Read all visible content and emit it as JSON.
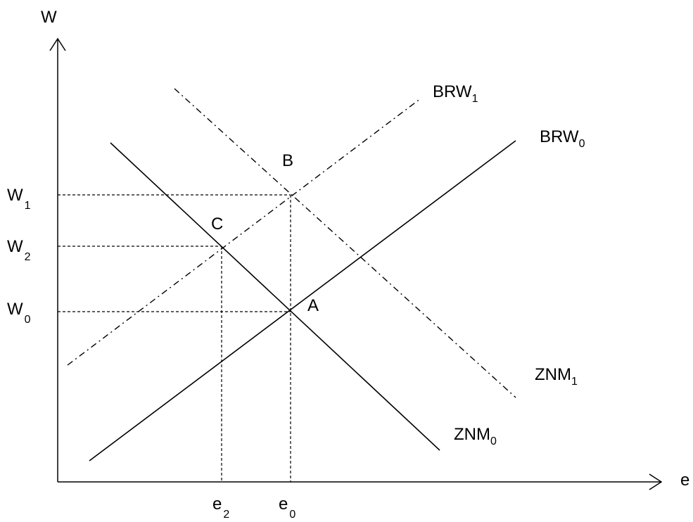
{
  "axes": {
    "y_label": "W",
    "x_label": "e"
  },
  "curves": {
    "brw0": {
      "name": "BRW",
      "sub": "0",
      "style": "solid"
    },
    "brw1": {
      "name": "BRW",
      "sub": "1",
      "style": "dash-dot"
    },
    "znm0": {
      "name": "ZNM",
      "sub": "0",
      "style": "solid"
    },
    "znm1": {
      "name": "ZNM",
      "sub": "1",
      "style": "dash-dot"
    }
  },
  "points": {
    "a": "A",
    "b": "B",
    "c": "C"
  },
  "y_ticks": {
    "w1": {
      "name": "W",
      "sub": "1"
    },
    "w2": {
      "name": "W",
      "sub": "2"
    },
    "w0": {
      "name": "W",
      "sub": "0"
    }
  },
  "x_ticks": {
    "e2": {
      "name": "e",
      "sub": "2"
    },
    "e0": {
      "name": "e",
      "sub": "0"
    }
  }
}
